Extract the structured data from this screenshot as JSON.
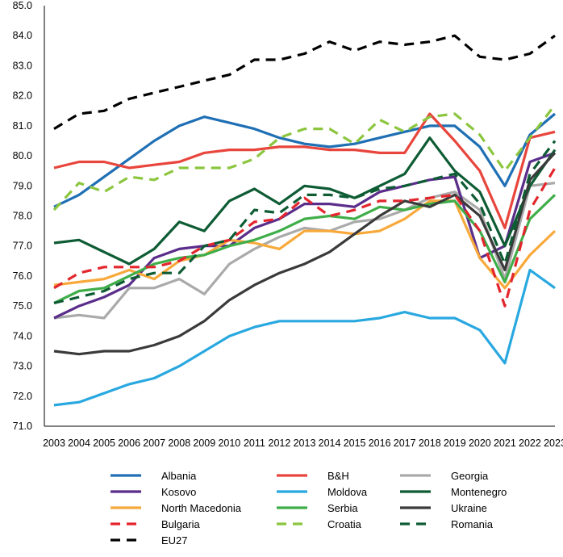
{
  "chart_data": {
    "type": "line",
    "title": "",
    "xlabel": "",
    "ylabel": "",
    "ylim": [
      71.0,
      85.0
    ],
    "yticks": [
      "71.0",
      "72.0",
      "73.0",
      "74.0",
      "75.0",
      "76.0",
      "77.0",
      "78.0",
      "79.0",
      "80.0",
      "81.0",
      "82.0",
      "83.0",
      "84.0",
      "85.0"
    ],
    "grid": false,
    "legend_position": "bottom",
    "x": [
      "2003",
      "2004",
      "2005",
      "2006",
      "2007",
      "2008",
      "2009",
      "2010",
      "2011",
      "2012",
      "2013",
      "2014",
      "2015",
      "2016",
      "2017",
      "2018",
      "2019",
      "2020",
      "2021",
      "2022",
      "2023"
    ],
    "series": [
      {
        "name": "Albania",
        "color": "#1f6fb4",
        "dash": "solid",
        "values": [
          78.3,
          78.7,
          79.3,
          79.9,
          80.5,
          81.0,
          81.3,
          81.1,
          80.9,
          80.6,
          80.4,
          80.3,
          80.4,
          80.6,
          80.8,
          81.0,
          81.0,
          80.3,
          79.0,
          80.7,
          81.4
        ]
      },
      {
        "name": "B&H",
        "color": "#e8453c",
        "dash": "solid",
        "values": [
          79.6,
          79.8,
          79.8,
          79.6,
          79.7,
          79.8,
          80.1,
          80.2,
          80.2,
          80.3,
          80.3,
          80.2,
          80.2,
          80.1,
          80.1,
          81.4,
          80.5,
          79.5,
          77.6,
          80.6,
          80.8
        ]
      },
      {
        "name": "Georgia",
        "color": "#aaaaaa",
        "dash": "solid",
        "values": [
          74.6,
          74.7,
          74.6,
          75.6,
          75.6,
          75.9,
          75.4,
          76.4,
          76.9,
          77.3,
          77.6,
          77.5,
          77.8,
          77.9,
          78.2,
          78.6,
          78.8,
          78.2,
          75.9,
          79.0,
          79.1
        ]
      },
      {
        "name": "Kosovo",
        "color": "#5a2d8a",
        "dash": "solid",
        "values": [
          74.6,
          75.0,
          75.3,
          75.7,
          76.6,
          76.9,
          77.0,
          77.0,
          77.6,
          77.9,
          78.4,
          78.4,
          78.3,
          78.8,
          79.0,
          79.2,
          79.3,
          76.6,
          77.0,
          79.8,
          80.1
        ]
      },
      {
        "name": "Moldova",
        "color": "#29a8e0",
        "dash": "solid",
        "values": [
          71.7,
          71.8,
          72.1,
          72.4,
          72.6,
          73.0,
          73.5,
          74.0,
          74.3,
          74.5,
          74.5,
          74.5,
          74.5,
          74.6,
          74.8,
          74.6,
          74.6,
          74.2,
          73.1,
          76.2,
          75.6
        ]
      },
      {
        "name": "Montenegro",
        "color": "#0e5c34",
        "dash": "solid",
        "values": [
          77.1,
          77.2,
          76.8,
          76.4,
          76.9,
          77.8,
          77.5,
          78.5,
          78.9,
          78.4,
          79.0,
          78.9,
          78.6,
          79.0,
          79.4,
          80.6,
          79.5,
          78.8,
          77.0,
          79.0,
          80.2
        ]
      },
      {
        "name": "North Macedonia",
        "color": "#f8a93b",
        "dash": "solid",
        "values": [
          75.7,
          75.8,
          75.9,
          76.2,
          75.9,
          76.5,
          76.7,
          77.2,
          77.1,
          76.9,
          77.5,
          77.5,
          77.4,
          77.5,
          77.9,
          78.5,
          78.5,
          76.6,
          75.6,
          76.7,
          77.5
        ]
      },
      {
        "name": "Serbia",
        "color": "#3fae49",
        "dash": "solid",
        "values": [
          75.1,
          75.5,
          75.6,
          76.0,
          76.4,
          76.6,
          76.7,
          77.0,
          77.2,
          77.5,
          77.9,
          78.0,
          77.9,
          78.3,
          78.2,
          78.4,
          78.5,
          77.5,
          75.8,
          77.9,
          78.7
        ]
      },
      {
        "name": "Ukraine",
        "color": "#3a3a3a",
        "dash": "solid",
        "values": [
          73.5,
          73.4,
          73.5,
          73.5,
          73.7,
          74.0,
          74.5,
          75.2,
          75.7,
          76.1,
          76.4,
          76.8,
          77.4,
          78.0,
          78.5,
          78.3,
          78.7,
          78.0,
          76.2,
          79.2,
          80.1
        ]
      },
      {
        "name": "Bulgaria",
        "color": "#e3262d",
        "dash": "dashed",
        "values": [
          75.6,
          76.1,
          76.3,
          76.3,
          76.3,
          76.5,
          77.0,
          77.2,
          77.8,
          77.9,
          78.6,
          78.0,
          78.2,
          78.5,
          78.5,
          78.6,
          78.7,
          77.5,
          75.0,
          78.2,
          79.6
        ]
      },
      {
        "name": "Croatia",
        "color": "#8cc63f",
        "dash": "dashed",
        "values": [
          78.2,
          79.1,
          78.8,
          79.3,
          79.2,
          79.6,
          79.6,
          79.6,
          79.9,
          80.6,
          80.9,
          80.9,
          80.4,
          81.2,
          80.8,
          81.3,
          81.4,
          80.7,
          79.5,
          80.6,
          81.7
        ]
      },
      {
        "name": "Romania",
        "color": "#0e5c34",
        "dash": "dashed",
        "values": [
          75.1,
          75.3,
          75.5,
          75.9,
          76.1,
          76.1,
          77.0,
          77.2,
          78.2,
          78.1,
          78.7,
          78.7,
          78.6,
          78.9,
          79.0,
          79.2,
          79.4,
          78.4,
          76.4,
          79.4,
          80.5
        ]
      },
      {
        "name": "EU27",
        "color": "#000000",
        "dash": "dashed",
        "values": [
          80.9,
          81.4,
          81.5,
          81.9,
          82.1,
          82.3,
          82.5,
          82.7,
          83.2,
          83.2,
          83.4,
          83.8,
          83.5,
          83.8,
          83.7,
          83.8,
          84.0,
          83.3,
          83.2,
          83.4,
          84.0
        ]
      }
    ]
  }
}
